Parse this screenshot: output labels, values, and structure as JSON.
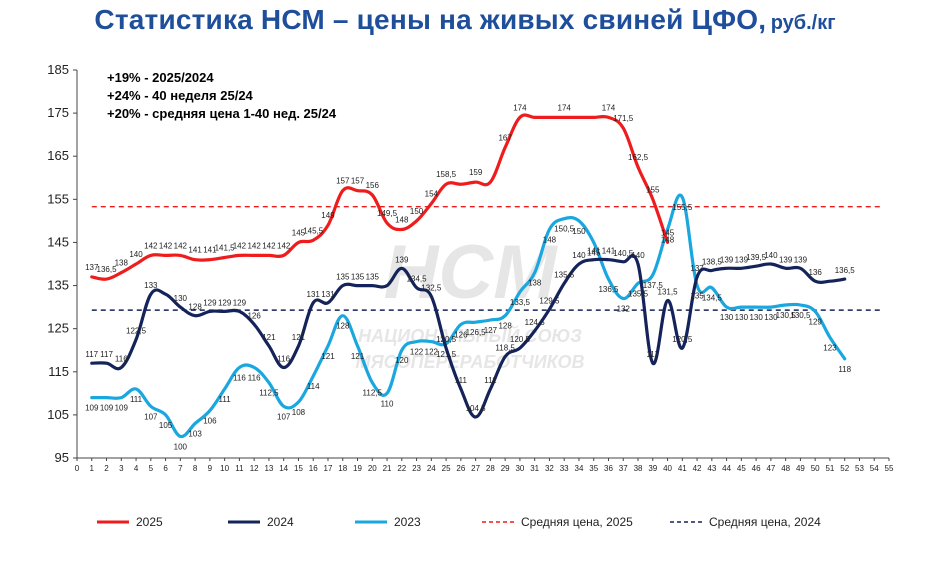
{
  "title": {
    "main": "Статистика НСМ – цены на живых свиней ЦФО,",
    "unit": "руб./кг"
  },
  "watermark": {
    "logo": "НСМ",
    "line1": "НАЦИОНАЛЬНЫЙ СОЮЗ",
    "line2": "МЯСОПЕРЕРАБОТЧИКОВ"
  },
  "chart_data": {
    "type": "line",
    "title": "Статистика НСМ – цены на живых свиней ЦФО, руб./кг",
    "xlabel": "",
    "ylabel": "",
    "xlim": [
      0,
      55
    ],
    "ylim": [
      95,
      185
    ],
    "yticks": [
      95,
      105,
      115,
      125,
      135,
      145,
      155,
      165,
      175,
      185
    ],
    "xticks": [
      0,
      1,
      2,
      3,
      4,
      5,
      6,
      7,
      8,
      9,
      10,
      11,
      12,
      13,
      14,
      15,
      16,
      17,
      18,
      19,
      20,
      21,
      22,
      23,
      24,
      25,
      26,
      27,
      28,
      29,
      30,
      31,
      32,
      33,
      34,
      35,
      36,
      37,
      38,
      39,
      40,
      41,
      42,
      43,
      44,
      45,
      46,
      47,
      48,
      49,
      50,
      51,
      52,
      53,
      54,
      55
    ],
    "grid": "none",
    "legend_position": "bottom",
    "annotations": [
      "+19% - 2025/2024",
      "+24%  - 40 неделя 25/24",
      "+20% - средняя цена 1-40 нед. 25/24"
    ],
    "series": [
      {
        "name": "2025",
        "color": "#ee1c1c",
        "x": [
          1,
          2,
          3,
          4,
          5,
          6,
          7,
          8,
          9,
          10,
          11,
          12,
          13,
          14,
          15,
          16,
          17,
          18,
          19,
          20,
          21,
          22,
          23,
          24,
          25,
          26,
          27,
          28,
          29,
          30,
          31,
          32,
          33,
          34,
          35,
          36,
          37,
          38,
          39,
          40
        ],
        "values": [
          137,
          136.5,
          138,
          140,
          142,
          142,
          142,
          141,
          141,
          141.5,
          142,
          142,
          142,
          142,
          145,
          145.5,
          149,
          157,
          157,
          156,
          149.5,
          148,
          150,
          154,
          158.5,
          158.5,
          159,
          159,
          167,
          174,
          174,
          174,
          174,
          174,
          174,
          174,
          171.5,
          162.5,
          155,
          145
        ],
        "labels": [
          "137",
          "136,5",
          "138",
          "140",
          "142",
          "142",
          "142",
          "141",
          "141",
          "141,5",
          "142",
          "142",
          "142",
          "142",
          "145",
          "145,5",
          "149",
          "157",
          "157",
          "156",
          "149,5",
          "148",
          "150",
          "154",
          "158,5",
          "",
          "159",
          "",
          "167",
          "174",
          "",
          "",
          "174",
          "",
          "",
          "174",
          "171,5",
          "162,5",
          "155",
          "145"
        ]
      },
      {
        "name": "2024",
        "color": "#14245a",
        "x": [
          1,
          2,
          3,
          4,
          5,
          6,
          7,
          8,
          9,
          10,
          11,
          12,
          13,
          14,
          15,
          16,
          17,
          18,
          19,
          20,
          21,
          22,
          23,
          24,
          25,
          26,
          27,
          28,
          29,
          30,
          31,
          32,
          33,
          34,
          35,
          36,
          37,
          38,
          39,
          40,
          41,
          42,
          43,
          44,
          45,
          46,
          47,
          48,
          49,
          50,
          51,
          52
        ],
        "values": [
          117,
          117,
          116,
          122.5,
          133,
          133,
          130,
          128,
          129,
          129,
          129,
          126,
          121,
          116,
          121,
          131,
          131,
          135,
          135,
          135,
          135,
          139,
          134.5,
          132.5,
          120.5,
          111,
          104.5,
          111,
          118.5,
          120.5,
          124.5,
          129.5,
          135.5,
          140,
          141,
          141,
          140.5,
          140,
          117,
          131.5,
          120.5,
          137,
          138.5,
          139,
          139,
          139.5,
          140,
          139,
          139,
          136,
          136,
          136.5
        ],
        "labels": [
          "117",
          "117",
          "116",
          "122,5",
          "133",
          "",
          "130",
          "128",
          "129",
          "129",
          "129",
          "126",
          "121",
          "116",
          "121",
          "131",
          "131",
          "135",
          "135",
          "135",
          "",
          "139",
          "134,5",
          "132,5",
          "120,5",
          "111",
          "104,5",
          "111",
          "118,5",
          "120,5",
          "124,5",
          "129,5",
          "135,5",
          "140",
          "141",
          "141",
          "140,5",
          "140",
          "117",
          "131,5",
          "120,5",
          "137",
          "138,5",
          "139",
          "139",
          "139,5",
          "140",
          "139",
          "139",
          "136",
          "",
          "136,5"
        ]
      },
      {
        "name": "2023",
        "color": "#1aa7e0",
        "x": [
          1,
          2,
          3,
          4,
          5,
          6,
          7,
          8,
          9,
          10,
          11,
          12,
          13,
          14,
          15,
          16,
          17,
          18,
          19,
          20,
          21,
          22,
          23,
          24,
          25,
          26,
          27,
          28,
          29,
          30,
          31,
          32,
          33,
          34,
          35,
          36,
          37,
          38,
          39,
          40,
          41,
          42,
          43,
          44,
          45,
          46,
          47,
          48,
          49,
          50,
          51,
          52
        ],
        "values": [
          109,
          109,
          109,
          111,
          107,
          105,
          100,
          103,
          106,
          111,
          116,
          116,
          112.5,
          107,
          108,
          114,
          121,
          128,
          121,
          112.5,
          110,
          120,
          122,
          122,
          121.5,
          126,
          126.5,
          127,
          128,
          133.5,
          138,
          148,
          150.5,
          150,
          145,
          136.5,
          132,
          135.5,
          137.5,
          148,
          155.5,
          135,
          134.5,
          130,
          130,
          130,
          130,
          130.5,
          130.5,
          129,
          123,
          118
        ],
        "labels": [
          "109",
          "109",
          "109",
          "111",
          "107",
          "105",
          "100",
          "103",
          "106",
          "111",
          "116",
          "116",
          "112,5",
          "107",
          "108",
          "114",
          "121",
          "128",
          "121",
          "112,5",
          "110",
          "120",
          "122",
          "122",
          "121,5",
          "126",
          "126,5",
          "127",
          "128",
          "133,5",
          "138",
          "148",
          "150,5",
          "150",
          "145",
          "136,5",
          "132",
          "135,5",
          "137,5",
          "148",
          "155,5",
          "135",
          "134,5",
          "130",
          "130",
          "130",
          "130",
          "130,5",
          "130,5",
          "129",
          "123",
          "118"
        ]
      }
    ],
    "reference_lines": [
      {
        "name": "Средняя цена, 2025",
        "value": 153.3,
        "color": "#ee1c1c",
        "style": "dashed"
      },
      {
        "name": "Средняя цена, 2024",
        "value": 129.3,
        "color": "#14245a",
        "style": "dashed"
      }
    ]
  }
}
